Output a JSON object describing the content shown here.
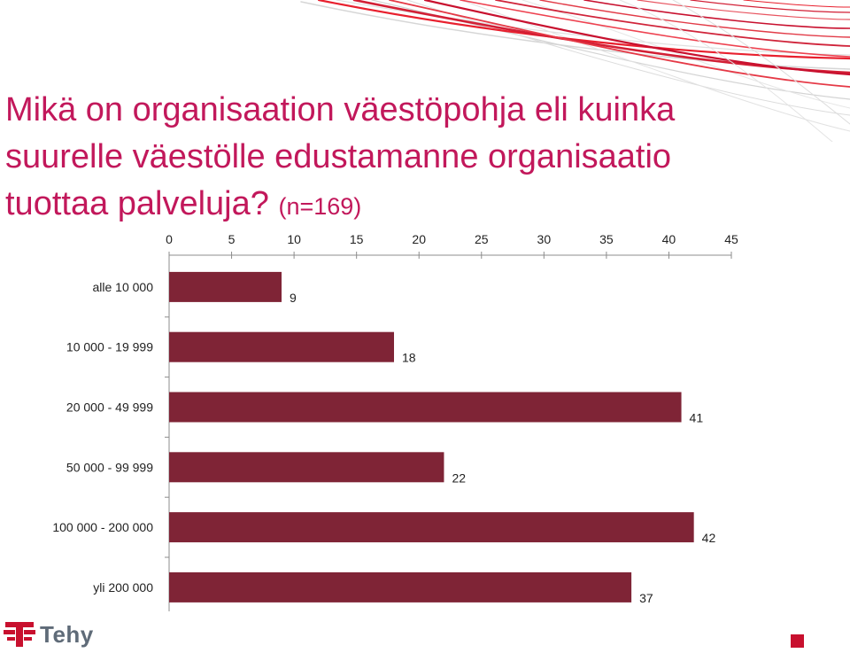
{
  "slide": {
    "title": "Mikä on organisaation väestöpohja eli kuinka suurelle väestölle edustamanne organisaatio tuottaa palveluja?",
    "sample_note": "(n=169)",
    "logo_text": "Tehy",
    "bar_color": "#7f2436",
    "accent_color": "#c8102e",
    "title_color": "#c2185b"
  },
  "chart_data": {
    "type": "bar",
    "orientation": "horizontal",
    "categories": [
      "alle 10 000",
      "10 000 - 19 999",
      "20 000 - 49 999",
      "50 000 - 99 999",
      "100 000 - 200 000",
      "yli 200 000"
    ],
    "values": [
      9,
      18,
      41,
      22,
      42,
      37
    ],
    "xlim": [
      0,
      45
    ],
    "xticks": [
      0,
      5,
      10,
      15,
      20,
      25,
      30,
      35,
      40,
      45
    ],
    "x_axis_position": "top",
    "data_labels": true,
    "grid": false,
    "legend": "none"
  }
}
